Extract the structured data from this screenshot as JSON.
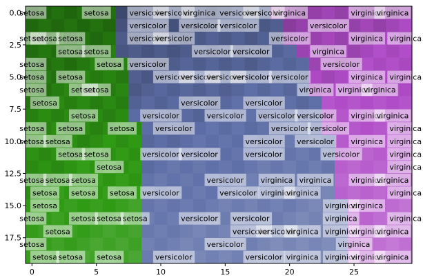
{
  "chart_data": {
    "type": "heatmap",
    "title": "",
    "xlabel": "",
    "ylabel": "",
    "n_cols": 30,
    "n_rows": 20,
    "xlim": [
      -0.5,
      29.5
    ],
    "ylim": [
      19.5,
      -0.5
    ],
    "xticks": [
      0,
      5,
      10,
      15,
      20,
      25
    ],
    "yticks": [
      0.0,
      2.5,
      5.0,
      7.5,
      10.0,
      12.5,
      15.0,
      17.5
    ],
    "xtick_labels": [
      "0",
      "5",
      "10",
      "15",
      "20",
      "25"
    ],
    "ytick_labels": [
      "0.0",
      "2.5",
      "5.0",
      "7.5",
      "10.0",
      "12.5",
      "15.0",
      "17.5"
    ],
    "colors": {
      "setosa_cell": "#2f9a14",
      "versicolor_cell": "#5e6fa8",
      "virginica_cell": "#b04cc8",
      "label_box": "#ffffff",
      "label_text": "#000000"
    },
    "cell_classes": [
      "sssssssvvvvvvvvvvvviiiiiiiiiii",
      "sssssssvvvvvvvvvvvvviiiiiiiiii",
      "sssssssvvvvvvvvvvvvviiiiiiiiii",
      "sssssssvvvvvvvvvvvvvviiiiiiiii",
      "ssssssssvvvvvvvvvvvvvviiiiiiii",
      "ssssssssvvvvvvvvvvvvvviiiiiiii",
      "ssssssssvvvvvvvvvvvvvviiiiiiii",
      "ssssssssvvvvvvvvvvvvvvviiiiiii",
      "ssssssssvvvvvvvvvvvvvvviiiiiii",
      "sssssssssvvvvvvvvvvvvvviiiiiii",
      "sssssssssvvvvvvvvvvvvvvviiiiii",
      "sssssssssvvvvvvvvvvvvvvviiiiii",
      "sssssssssvvvvvvvvvvvvvvviiiiii",
      "sssssssssvvvvvvvvvvvvvvviiiiii",
      "sssssssssvvvvvvvvvvvvvvviiiiii",
      "sssssssssvvvvvvvvvvvvvvvviiiii",
      "sssssssssvvvvvvvvvvvvvvvviiiii",
      "sssssssssvvvvvvvvvvvvvvvviiiii",
      "sssssssssvvvvvvvvvvvvvvvviiiii",
      "sssssssssvvvvvvvvvvvvvvvviiiii"
    ],
    "labels": [
      {
        "row": 0,
        "col": 0,
        "text": "setosa"
      },
      {
        "row": 0,
        "col": 5,
        "text": "setosa"
      },
      {
        "row": 0,
        "col": 9,
        "text": "versicolor"
      },
      {
        "row": 0,
        "col": 11,
        "text": "versicolor"
      },
      {
        "row": 0,
        "col": 13,
        "text": "virginica"
      },
      {
        "row": 0,
        "col": 16,
        "text": "versicolor"
      },
      {
        "row": 0,
        "col": 18,
        "text": "versicolor"
      },
      {
        "row": 0,
        "col": 20,
        "text": "virginica"
      },
      {
        "row": 0,
        "col": 26,
        "text": "virginica"
      },
      {
        "row": 0,
        "col": 28,
        "text": "virginica"
      },
      {
        "row": 1,
        "col": 9,
        "text": "versicolor"
      },
      {
        "row": 1,
        "col": 13,
        "text": "versicolor"
      },
      {
        "row": 1,
        "col": 16,
        "text": "versicolor"
      },
      {
        "row": 1,
        "col": 23,
        "text": "versicolor"
      },
      {
        "row": 2,
        "col": 0,
        "text": "setosa"
      },
      {
        "row": 2,
        "col": 1,
        "text": "setosa"
      },
      {
        "row": 2,
        "col": 3,
        "text": "setosa"
      },
      {
        "row": 2,
        "col": 9,
        "text": "versicolor"
      },
      {
        "row": 2,
        "col": 11,
        "text": "versicolor"
      },
      {
        "row": 2,
        "col": 20,
        "text": "versicolor"
      },
      {
        "row": 2,
        "col": 26,
        "text": "virginica"
      },
      {
        "row": 2,
        "col": 29,
        "text": "virginica"
      },
      {
        "row": 3,
        "col": 3,
        "text": "setosa"
      },
      {
        "row": 3,
        "col": 5,
        "text": "setosa"
      },
      {
        "row": 3,
        "col": 14,
        "text": "versicolor"
      },
      {
        "row": 3,
        "col": 17,
        "text": "versicolor"
      },
      {
        "row": 3,
        "col": 23,
        "text": "virginica"
      },
      {
        "row": 4,
        "col": 0,
        "text": "setosa"
      },
      {
        "row": 4,
        "col": 6,
        "text": "setosa"
      },
      {
        "row": 4,
        "col": 9,
        "text": "versicolor"
      },
      {
        "row": 4,
        "col": 24,
        "text": "versicolor"
      },
      {
        "row": 5,
        "col": 0,
        "text": "setosa"
      },
      {
        "row": 5,
        "col": 3,
        "text": "setosa"
      },
      {
        "row": 5,
        "col": 11,
        "text": "versicolor"
      },
      {
        "row": 5,
        "col": 13,
        "text": "versicolor"
      },
      {
        "row": 5,
        "col": 15,
        "text": "versicolor"
      },
      {
        "row": 5,
        "col": 17,
        "text": "versicolor"
      },
      {
        "row": 5,
        "col": 20,
        "text": "versicolor"
      },
      {
        "row": 5,
        "col": 26,
        "text": "virginica"
      },
      {
        "row": 5,
        "col": 29,
        "text": "virginica"
      },
      {
        "row": 6,
        "col": 0,
        "text": "setosa"
      },
      {
        "row": 6,
        "col": 4,
        "text": "setosa"
      },
      {
        "row": 6,
        "col": 5,
        "text": "setosa"
      },
      {
        "row": 6,
        "col": 22,
        "text": "virginica"
      },
      {
        "row": 6,
        "col": 25,
        "text": "virginica"
      },
      {
        "row": 6,
        "col": 27,
        "text": "virginica"
      },
      {
        "row": 7,
        "col": 1,
        "text": "setosa"
      },
      {
        "row": 7,
        "col": 13,
        "text": "versicolor"
      },
      {
        "row": 7,
        "col": 18,
        "text": "versicolor"
      },
      {
        "row": 8,
        "col": 4,
        "text": "setosa"
      },
      {
        "row": 8,
        "col": 10,
        "text": "versicolor"
      },
      {
        "row": 8,
        "col": 15,
        "text": "versicolor"
      },
      {
        "row": 8,
        "col": 19,
        "text": "versicolor"
      },
      {
        "row": 8,
        "col": 22,
        "text": "versicolor"
      },
      {
        "row": 8,
        "col": 26,
        "text": "virginica"
      },
      {
        "row": 8,
        "col": 28,
        "text": "virginica"
      },
      {
        "row": 9,
        "col": 0,
        "text": "setosa"
      },
      {
        "row": 9,
        "col": 3,
        "text": "setosa"
      },
      {
        "row": 9,
        "col": 7,
        "text": "setosa"
      },
      {
        "row": 9,
        "col": 11,
        "text": "versicolor"
      },
      {
        "row": 9,
        "col": 20,
        "text": "versicolor"
      },
      {
        "row": 9,
        "col": 23,
        "text": "versicolor"
      },
      {
        "row": 9,
        "col": 29,
        "text": "virginica"
      },
      {
        "row": 10,
        "col": 0,
        "text": "setosa"
      },
      {
        "row": 10,
        "col": 2,
        "text": "setosa"
      },
      {
        "row": 10,
        "col": 18,
        "text": "versicolor"
      },
      {
        "row": 10,
        "col": 22,
        "text": "versicolor"
      },
      {
        "row": 10,
        "col": 26,
        "text": "virginica"
      },
      {
        "row": 10,
        "col": 29,
        "text": "virginica"
      },
      {
        "row": 11,
        "col": 3,
        "text": "setosa"
      },
      {
        "row": 11,
        "col": 5,
        "text": "setosa"
      },
      {
        "row": 11,
        "col": 10,
        "text": "versicolor"
      },
      {
        "row": 11,
        "col": 13,
        "text": "versicolor"
      },
      {
        "row": 11,
        "col": 18,
        "text": "versicolor"
      },
      {
        "row": 11,
        "col": 24,
        "text": "versicolor"
      },
      {
        "row": 11,
        "col": 29,
        "text": "virginica"
      },
      {
        "row": 12,
        "col": 6,
        "text": "setosa"
      },
      {
        "row": 12,
        "col": 29,
        "text": "virginica"
      },
      {
        "row": 13,
        "col": 0,
        "text": "setosa"
      },
      {
        "row": 13,
        "col": 2,
        "text": "setosa"
      },
      {
        "row": 13,
        "col": 4,
        "text": "setosa"
      },
      {
        "row": 13,
        "col": 15,
        "text": "versicolor"
      },
      {
        "row": 13,
        "col": 19,
        "text": "virginica"
      },
      {
        "row": 13,
        "col": 22,
        "text": "virginica"
      },
      {
        "row": 13,
        "col": 26,
        "text": "virginica"
      },
      {
        "row": 13,
        "col": 28,
        "text": "virginica"
      },
      {
        "row": 14,
        "col": 1,
        "text": "setosa"
      },
      {
        "row": 14,
        "col": 4,
        "text": "setosa"
      },
      {
        "row": 14,
        "col": 7,
        "text": "setosa"
      },
      {
        "row": 14,
        "col": 10,
        "text": "versicolor"
      },
      {
        "row": 14,
        "col": 16,
        "text": "versicolor"
      },
      {
        "row": 14,
        "col": 19,
        "text": "virginica"
      },
      {
        "row": 14,
        "col": 21,
        "text": "virginica"
      },
      {
        "row": 14,
        "col": 29,
        "text": "virginica"
      },
      {
        "row": 15,
        "col": 1,
        "text": "setosa"
      },
      {
        "row": 15,
        "col": 24,
        "text": "virginica"
      },
      {
        "row": 15,
        "col": 26,
        "text": "virginica"
      },
      {
        "row": 16,
        "col": 0,
        "text": "setosa"
      },
      {
        "row": 16,
        "col": 4,
        "text": "setosa"
      },
      {
        "row": 16,
        "col": 6,
        "text": "setosa"
      },
      {
        "row": 16,
        "col": 8,
        "text": "setosa"
      },
      {
        "row": 16,
        "col": 13,
        "text": "versicolor"
      },
      {
        "row": 16,
        "col": 17,
        "text": "versicolor"
      },
      {
        "row": 16,
        "col": 24,
        "text": "virginica"
      },
      {
        "row": 16,
        "col": 29,
        "text": "virginica"
      },
      {
        "row": 17,
        "col": 2,
        "text": "setosa"
      },
      {
        "row": 17,
        "col": 17,
        "text": "versicolor"
      },
      {
        "row": 17,
        "col": 19,
        "text": "versicolor"
      },
      {
        "row": 17,
        "col": 21,
        "text": "virginica"
      },
      {
        "row": 17,
        "col": 24,
        "text": "virginica"
      },
      {
        "row": 17,
        "col": 26,
        "text": "virginica"
      },
      {
        "row": 17,
        "col": 28,
        "text": "virginica"
      },
      {
        "row": 18,
        "col": 0,
        "text": "setosa"
      },
      {
        "row": 18,
        "col": 15,
        "text": "versicolor"
      },
      {
        "row": 18,
        "col": 25,
        "text": "virginica"
      },
      {
        "row": 19,
        "col": 1,
        "text": "setosa"
      },
      {
        "row": 19,
        "col": 3,
        "text": "setosa"
      },
      {
        "row": 19,
        "col": 6,
        "text": "setosa"
      },
      {
        "row": 19,
        "col": 11,
        "text": "versicolor"
      },
      {
        "row": 19,
        "col": 18,
        "text": "versicolor"
      },
      {
        "row": 19,
        "col": 21,
        "text": "virginica"
      },
      {
        "row": 19,
        "col": 24,
        "text": "virginica"
      },
      {
        "row": 19,
        "col": 26,
        "text": "virginica"
      },
      {
        "row": 19,
        "col": 28,
        "text": "virginica"
      }
    ]
  }
}
